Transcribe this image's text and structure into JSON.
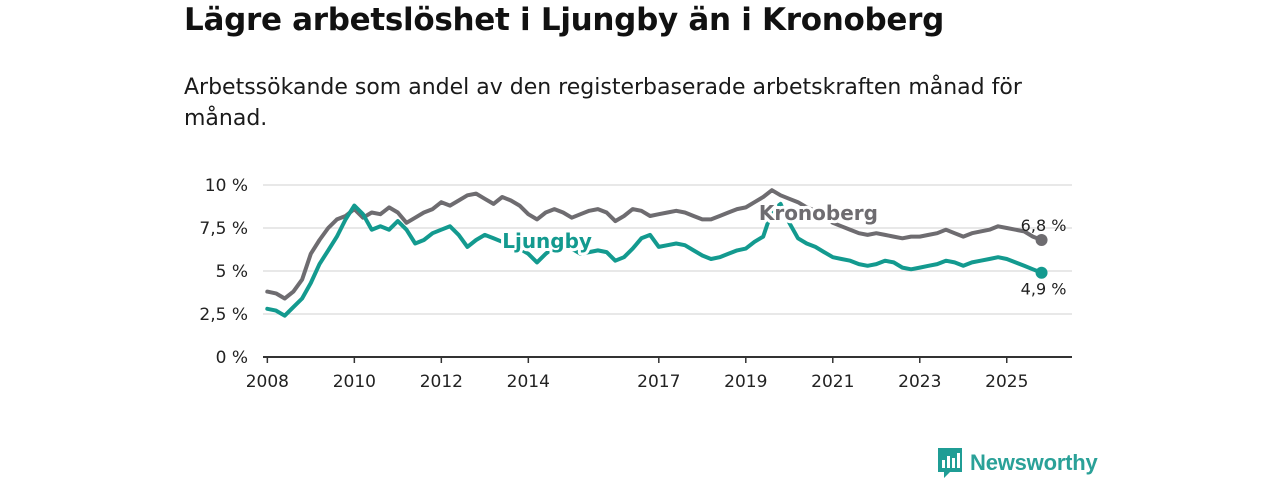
{
  "title": "Lägre arbetslöshet i Ljungby än i Kronoberg",
  "subtitle": "Arbetssökande som andel av den registerbaserade arbetskraften månad för månad.",
  "brand": {
    "name": "Newsworthy",
    "icon": "newsworthy-logo-icon",
    "color": "#1f9d95"
  },
  "chart_data": {
    "type": "line",
    "title": "Lägre arbetslöshet i Ljungby än i Kronoberg",
    "subtitle": "Arbetssökande som andel av den registerbaserade arbetskraften månad för månad.",
    "xlabel": "",
    "ylabel": "",
    "xlim": [
      2007.9,
      2026.5
    ],
    "ylim": [
      0,
      10
    ],
    "grid": true,
    "x_ticks": [
      2008,
      2010,
      2012,
      2014,
      2017,
      2019,
      2021,
      2023,
      2025
    ],
    "x_tick_labels": [
      "2008",
      "2010",
      "2012",
      "2014",
      "2017",
      "2019",
      "2021",
      "2023",
      "2025"
    ],
    "y_ticks": [
      0,
      2.5,
      5,
      7.5,
      10
    ],
    "y_tick_labels": [
      "0 %",
      "2,5 %",
      "5 %",
      "7,5 %",
      "10 %"
    ],
    "series": [
      {
        "name": "Kronoberg",
        "label": "Kronoberg",
        "color": "#6e6c70",
        "end_label": "6,8 %",
        "x": [
          2008.0,
          2008.2,
          2008.4,
          2008.6,
          2008.8,
          2009.0,
          2009.2,
          2009.4,
          2009.6,
          2009.8,
          2010.0,
          2010.2,
          2010.4,
          2010.6,
          2010.8,
          2011.0,
          2011.2,
          2011.4,
          2011.6,
          2011.8,
          2012.0,
          2012.2,
          2012.4,
          2012.6,
          2012.8,
          2013.0,
          2013.2,
          2013.4,
          2013.6,
          2013.8,
          2014.0,
          2014.2,
          2014.4,
          2014.6,
          2014.8,
          2015.0,
          2015.2,
          2015.4,
          2015.6,
          2015.8,
          2016.0,
          2016.2,
          2016.4,
          2016.6,
          2016.8,
          2017.0,
          2017.2,
          2017.4,
          2017.6,
          2017.8,
          2018.0,
          2018.2,
          2018.4,
          2018.6,
          2018.8,
          2019.0,
          2019.2,
          2019.4,
          2019.6,
          2019.8,
          2020.0,
          2020.2,
          2020.4,
          2020.6,
          2020.8,
          2021.0,
          2021.2,
          2021.4,
          2021.6,
          2021.8,
          2022.0,
          2022.2,
          2022.4,
          2022.6,
          2022.8,
          2023.0,
          2023.2,
          2023.4,
          2023.6,
          2023.8,
          2024.0,
          2024.2,
          2024.4,
          2024.6,
          2024.8,
          2025.0,
          2025.2,
          2025.4,
          2025.6,
          2025.8
        ],
        "values": [
          3.8,
          3.7,
          3.4,
          3.8,
          4.5,
          6.0,
          6.8,
          7.5,
          8.0,
          8.2,
          8.6,
          8.1,
          8.4,
          8.3,
          8.7,
          8.4,
          7.8,
          8.1,
          8.4,
          8.6,
          9.0,
          8.8,
          9.1,
          9.4,
          9.5,
          9.2,
          8.9,
          9.3,
          9.1,
          8.8,
          8.3,
          8.0,
          8.4,
          8.6,
          8.4,
          8.1,
          8.3,
          8.5,
          8.6,
          8.4,
          7.9,
          8.2,
          8.6,
          8.5,
          8.2,
          8.3,
          8.4,
          8.5,
          8.4,
          8.2,
          8.0,
          8.0,
          8.2,
          8.4,
          8.6,
          8.7,
          9.0,
          9.3,
          9.7,
          9.4,
          9.2,
          9.0,
          8.7,
          8.5,
          8.3,
          7.8,
          7.6,
          7.4,
          7.2,
          7.1,
          7.2,
          7.1,
          7.0,
          6.9,
          7.0,
          7.0,
          7.1,
          7.2,
          7.4,
          7.2,
          7.0,
          7.2,
          7.3,
          7.4,
          7.6,
          7.5,
          7.4,
          7.3,
          7.0,
          6.8
        ]
      },
      {
        "name": "Ljungby",
        "label": "Ljungby",
        "color": "#139a8f",
        "end_label": "4,9 %",
        "x": [
          2008.0,
          2008.2,
          2008.4,
          2008.6,
          2008.8,
          2009.0,
          2009.2,
          2009.4,
          2009.6,
          2009.8,
          2010.0,
          2010.2,
          2010.4,
          2010.6,
          2010.8,
          2011.0,
          2011.2,
          2011.4,
          2011.6,
          2011.8,
          2012.0,
          2012.2,
          2012.4,
          2012.6,
          2012.8,
          2013.0,
          2013.2,
          2013.4,
          2013.6,
          2013.8,
          2014.0,
          2014.2,
          2014.4,
          2014.6,
          2014.8,
          2015.0,
          2015.2,
          2015.4,
          2015.6,
          2015.8,
          2016.0,
          2016.2,
          2016.4,
          2016.6,
          2016.8,
          2017.0,
          2017.2,
          2017.4,
          2017.6,
          2017.8,
          2018.0,
          2018.2,
          2018.4,
          2018.6,
          2018.8,
          2019.0,
          2019.2,
          2019.4,
          2019.6,
          2019.8,
          2020.0,
          2020.2,
          2020.4,
          2020.6,
          2020.8,
          2021.0,
          2021.2,
          2021.4,
          2021.6,
          2021.8,
          2022.0,
          2022.2,
          2022.4,
          2022.6,
          2022.8,
          2023.0,
          2023.2,
          2023.4,
          2023.6,
          2023.8,
          2024.0,
          2024.2,
          2024.4,
          2024.6,
          2024.8,
          2025.0,
          2025.2,
          2025.4,
          2025.6,
          2025.8
        ],
        "values": [
          2.8,
          2.7,
          2.4,
          2.9,
          3.4,
          4.3,
          5.4,
          6.2,
          7.0,
          8.0,
          8.8,
          8.3,
          7.4,
          7.6,
          7.4,
          7.9,
          7.4,
          6.6,
          6.8,
          7.2,
          7.4,
          7.6,
          7.1,
          6.4,
          6.8,
          7.1,
          6.9,
          6.7,
          6.5,
          6.3,
          6.0,
          5.5,
          6.0,
          6.4,
          6.6,
          6.3,
          6.0,
          6.1,
          6.2,
          6.1,
          5.6,
          5.8,
          6.3,
          6.9,
          7.1,
          6.4,
          6.5,
          6.6,
          6.5,
          6.2,
          5.9,
          5.7,
          5.8,
          6.0,
          6.2,
          6.3,
          6.7,
          7.0,
          8.5,
          8.9,
          7.8,
          6.9,
          6.6,
          6.4,
          6.1,
          5.8,
          5.7,
          5.6,
          5.4,
          5.3,
          5.4,
          5.6,
          5.5,
          5.2,
          5.1,
          5.2,
          5.3,
          5.4,
          5.6,
          5.5,
          5.3,
          5.5,
          5.6,
          5.7,
          5.8,
          5.7,
          5.5,
          5.3,
          5.1,
          4.9
        ]
      }
    ],
    "annotations": [
      {
        "text": "Kronoberg",
        "series": "Kronoberg",
        "x": 2019.3,
        "y": 8.3
      },
      {
        "text": "Ljungby",
        "series": "Ljungby",
        "x": 2013.4,
        "y": 6.7
      }
    ]
  }
}
